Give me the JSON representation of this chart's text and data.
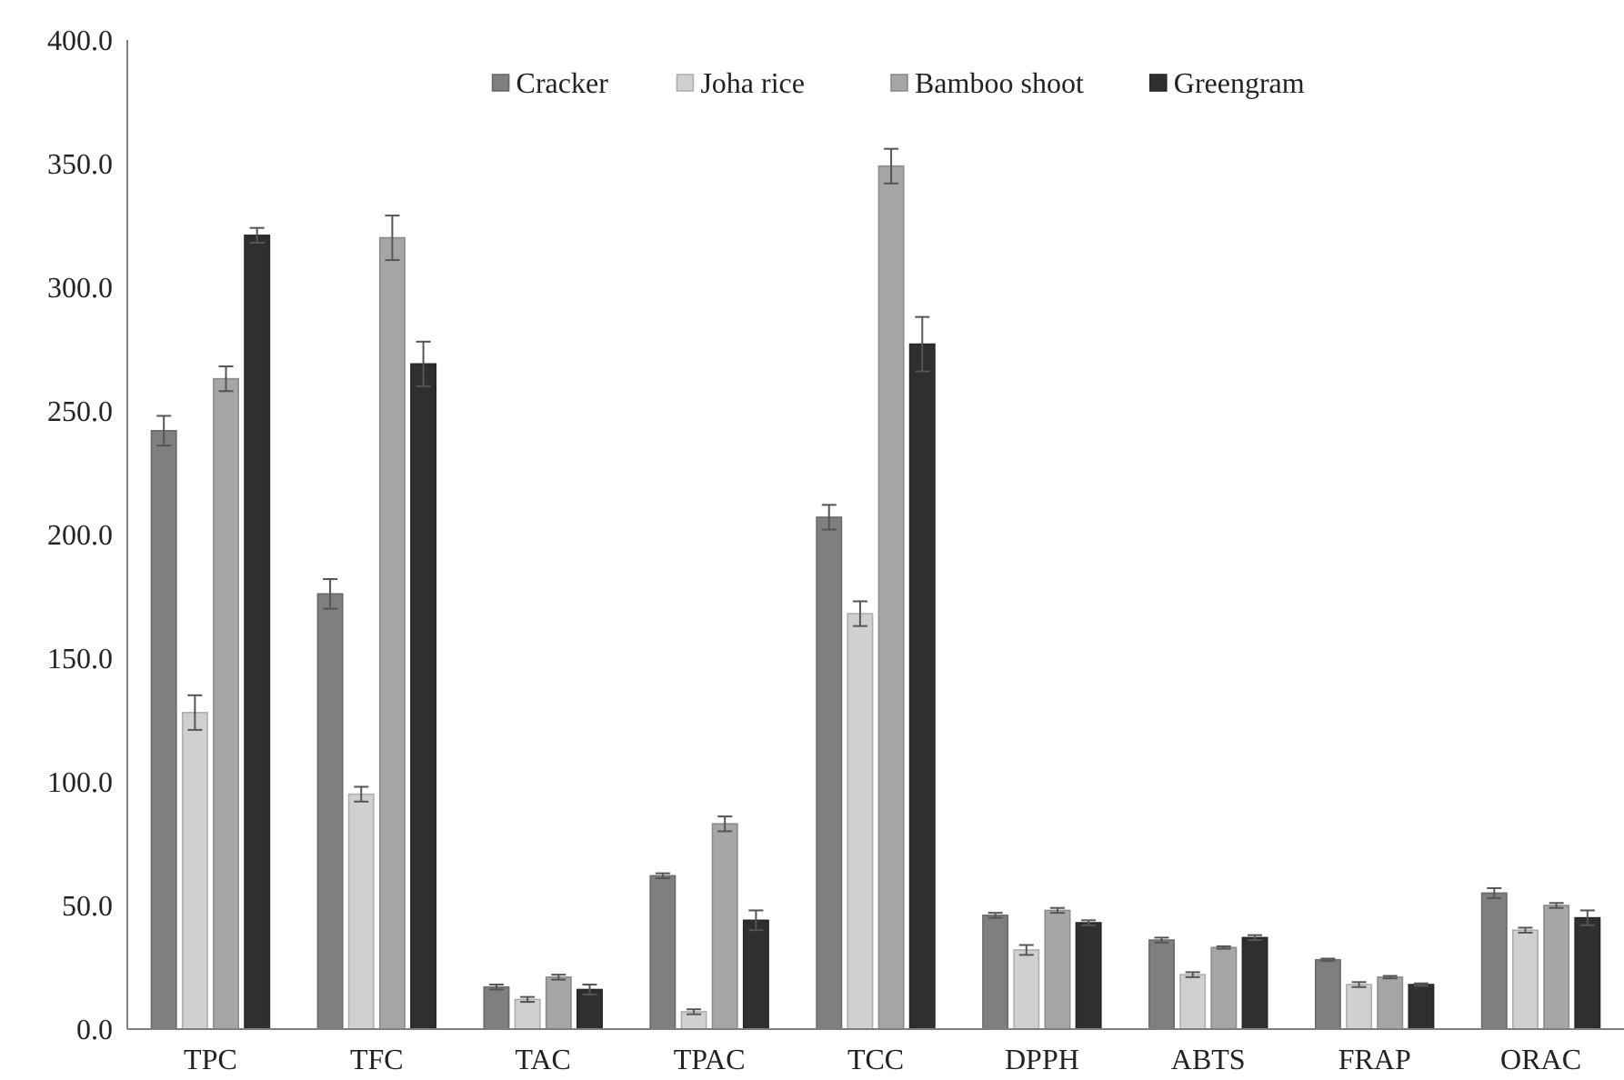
{
  "chart_data": {
    "type": "bar",
    "categories": [
      "TPC",
      "TFC",
      "TAC",
      "TPAC",
      "TCC",
      "DPPH",
      "ABTS",
      "FRAP",
      "ORAC"
    ],
    "series": [
      {
        "name": "Cracker",
        "color": "#7f7f7f",
        "values": [
          242,
          176,
          17,
          62,
          207,
          46,
          36,
          28,
          55
        ],
        "errors": [
          6,
          6,
          1,
          1,
          5,
          1,
          1,
          0.5,
          2
        ]
      },
      {
        "name": "Joha rice",
        "color": "#d0d0d0",
        "values": [
          128,
          95,
          12,
          7,
          168,
          32,
          22,
          18,
          40
        ],
        "errors": [
          7,
          3,
          1,
          1,
          5,
          2,
          1,
          1,
          1
        ]
      },
      {
        "name": "Bamboo shoot",
        "color": "#a6a6a6",
        "values": [
          263,
          320,
          21,
          83,
          349,
          48,
          33,
          21,
          50
        ],
        "errors": [
          5,
          9,
          1,
          3,
          7,
          1,
          0.5,
          0.5,
          1
        ]
      },
      {
        "name": "Greengram",
        "color": "#2f2f2f",
        "values": [
          321,
          269,
          16,
          44,
          277,
          43,
          37,
          18,
          45
        ],
        "errors": [
          3,
          9,
          2,
          4,
          11,
          1,
          1,
          0.5,
          3
        ]
      }
    ],
    "ylim": [
      0,
      400
    ],
    "yticks": [
      {
        "value": 0,
        "label": "0.0"
      },
      {
        "value": 50,
        "label": "50.0"
      },
      {
        "value": 100,
        "label": "100.0"
      },
      {
        "value": 150,
        "label": "150.0"
      },
      {
        "value": 200,
        "label": "200.0"
      },
      {
        "value": 250,
        "label": "250.0"
      },
      {
        "value": 300,
        "label": "300.0"
      },
      {
        "value": 350,
        "label": "350.0"
      },
      {
        "value": 400,
        "label": "400.0"
      }
    ],
    "grid": false,
    "legend": "top"
  }
}
